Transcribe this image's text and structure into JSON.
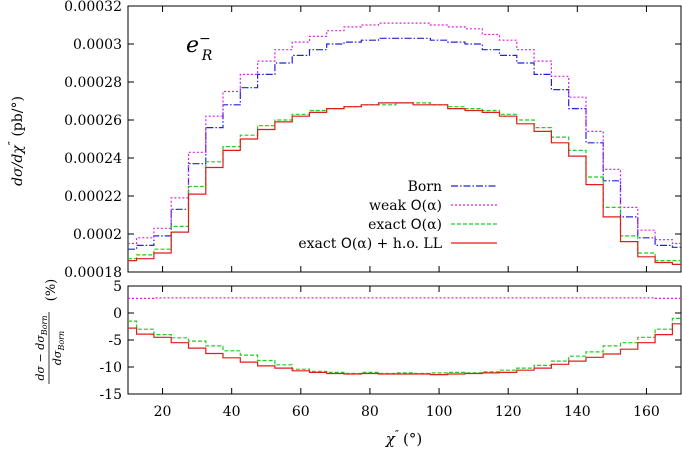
{
  "chart_data": [
    {
      "type": "line",
      "panel": "main",
      "xlabel": "χ″ (°)",
      "ylabel": "dσ/dχ″ (pb/°)",
      "ylabel_parts": [
        "dσ/dχ",
        "″",
        " (pb/°)"
      ],
      "annotation": {
        "base": "e",
        "sup": "−",
        "sub": "R"
      },
      "xlim": [
        10,
        170
      ],
      "ylim": [
        0.00018,
        0.00032
      ],
      "yticks": [
        0.00018,
        0.0002,
        0.00022,
        0.00024,
        0.00026,
        0.00028,
        0.0003,
        0.00032
      ],
      "ytick_labels": [
        "0.00018",
        "0.0002",
        "0.00022",
        "0.00024",
        "0.00026",
        "0.00028",
        "0.0003",
        "0.00032"
      ],
      "legend_position": "bottom-right",
      "x": [
        10,
        15,
        20,
        25,
        30,
        35,
        40,
        45,
        50,
        55,
        60,
        65,
        70,
        75,
        80,
        85,
        90,
        95,
        100,
        105,
        110,
        115,
        120,
        125,
        130,
        135,
        140,
        145,
        150,
        155,
        160,
        165,
        170
      ],
      "series": [
        {
          "name": "Born",
          "legend_parts": [
            "Born"
          ],
          "color": "#2222dd",
          "dash": "7 2 1.5 2",
          "values": [
            0.000192,
            0.000194,
            0.000199,
            0.000213,
            0.000237,
            0.000256,
            0.000268,
            0.000277,
            0.000284,
            0.00029,
            0.000294,
            0.000297,
            0.0003,
            0.000301,
            0.000302,
            0.000303,
            0.000303,
            0.000303,
            0.000302,
            0.000301,
            0.0003,
            0.000297,
            0.000294,
            0.00029,
            0.000284,
            0.000276,
            0.000266,
            0.000248,
            0.000228,
            0.000209,
            0.000198,
            0.000194,
            0.000193
          ]
        },
        {
          "name": "weak O(α)",
          "legend_parts": [
            "weak ",
            "O",
            "(α)"
          ],
          "color": "#dd22dd",
          "dash": "2 2",
          "values": [
            0.000195,
            0.000198,
            0.000203,
            0.000219,
            0.000243,
            0.000262,
            0.000275,
            0.000284,
            0.000291,
            0.000297,
            0.000301,
            0.000304,
            0.000307,
            0.000309,
            0.00031,
            0.000311,
            0.000311,
            0.000311,
            0.00031,
            0.000309,
            0.000308,
            0.000305,
            0.000302,
            0.000297,
            0.000291,
            0.000283,
            0.000272,
            0.000254,
            0.000234,
            0.000214,
            0.000202,
            0.000197,
            0.000195
          ]
        },
        {
          "name": "exact O(α)",
          "legend_parts": [
            "exact ",
            "O",
            "(α)"
          ],
          "color": "#22cc22",
          "dash": "4 2",
          "values": [
            0.000187,
            0.000189,
            0.000192,
            0.000204,
            0.000225,
            0.000238,
            0.000246,
            0.000252,
            0.000257,
            0.00026,
            0.000263,
            0.000265,
            0.000266,
            0.000267,
            0.000268,
            0.000268,
            0.000269,
            0.000269,
            0.000268,
            0.000267,
            0.000266,
            0.000265,
            0.000263,
            0.00026,
            0.000256,
            0.000251,
            0.000244,
            0.00023,
            0.000214,
            0.000199,
            0.00019,
            0.000186,
            0.000186
          ]
        },
        {
          "name": "exact O(α) + h.o. LL",
          "legend_parts": [
            "exact ",
            "O",
            "(α) + h.o. LL"
          ],
          "color": "#e21c1c",
          "dash": "",
          "values": [
            0.000186,
            0.000187,
            0.00019,
            0.000201,
            0.000221,
            0.000235,
            0.000244,
            0.00025,
            0.000255,
            0.000259,
            0.000262,
            0.000264,
            0.000266,
            0.000267,
            0.000268,
            0.000269,
            0.000269,
            0.000268,
            0.000268,
            0.000266,
            0.000265,
            0.000264,
            0.000262,
            0.000258,
            0.000254,
            0.000248,
            0.000241,
            0.000226,
            0.000209,
            0.000196,
            0.000188,
            0.000185,
            0.000184
          ]
        }
      ]
    },
    {
      "type": "line",
      "panel": "ratio",
      "ylabel": "(dσ − dσBorn)/dσBorn (%)",
      "ylabel_parts": {
        "num": "dσ − dσ",
        "num_sub": "Born",
        "den": "dσ",
        "den_sub": "Born",
        "unit": "(%)"
      },
      "xlim": [
        10,
        170
      ],
      "ylim": [
        -15,
        5
      ],
      "yticks": [
        -15,
        -10,
        -5,
        0,
        5
      ],
      "ytick_labels": [
        "-15",
        "-10",
        "-5",
        "0",
        "5"
      ],
      "x": [
        10,
        15,
        20,
        25,
        30,
        35,
        40,
        45,
        50,
        55,
        60,
        65,
        70,
        75,
        80,
        85,
        90,
        95,
        100,
        105,
        110,
        115,
        120,
        125,
        130,
        135,
        140,
        145,
        150,
        155,
        160,
        165,
        170
      ],
      "series": [
        {
          "name": "weak O(α)",
          "color": "#dd22dd",
          "dash": "2 2",
          "values": [
            2.7,
            2.7,
            2.8,
            2.8,
            2.8,
            2.8,
            2.8,
            2.8,
            2.8,
            2.8,
            2.8,
            2.8,
            2.8,
            2.8,
            2.8,
            2.8,
            2.8,
            2.8,
            2.8,
            2.8,
            2.8,
            2.8,
            2.8,
            2.8,
            2.8,
            2.8,
            2.8,
            2.8,
            2.8,
            2.8,
            2.8,
            2.7,
            2.7
          ]
        },
        {
          "name": "exact O(α)",
          "color": "#22cc22",
          "dash": "4 2",
          "values": [
            -1.5,
            -3.0,
            -4.0,
            -4.6,
            -5.2,
            -6.1,
            -7.0,
            -7.8,
            -8.8,
            -9.6,
            -10.4,
            -10.8,
            -11.0,
            -11.2,
            -11.0,
            -11.2,
            -11.1,
            -11.2,
            -11.1,
            -11.0,
            -11.1,
            -10.9,
            -10.6,
            -10.2,
            -9.7,
            -8.9,
            -8.0,
            -7.2,
            -6.1,
            -5.5,
            -4.5,
            -3.0,
            -1.0
          ]
        },
        {
          "name": "exact O(α) + h.o. LL",
          "color": "#e21c1c",
          "dash": "",
          "values": [
            -2.8,
            -3.9,
            -4.5,
            -5.5,
            -6.5,
            -7.5,
            -8.3,
            -9.1,
            -9.8,
            -10.2,
            -10.7,
            -11.0,
            -11.2,
            -11.3,
            -11.2,
            -11.3,
            -11.3,
            -11.3,
            -11.4,
            -11.3,
            -11.2,
            -11.1,
            -11.0,
            -10.6,
            -10.2,
            -9.5,
            -8.9,
            -8.2,
            -7.6,
            -6.7,
            -5.5,
            -4.0,
            -2.0
          ]
        }
      ]
    }
  ],
  "shared_x": {
    "xlabel_base": "χ",
    "xlabel_sup": "″",
    "xlabel_unit": "(°)",
    "xticks": [
      20,
      40,
      60,
      80,
      100,
      120,
      140,
      160
    ],
    "xtick_labels": [
      "20",
      "40",
      "60",
      "80",
      "100",
      "120",
      "140",
      "160"
    ]
  }
}
